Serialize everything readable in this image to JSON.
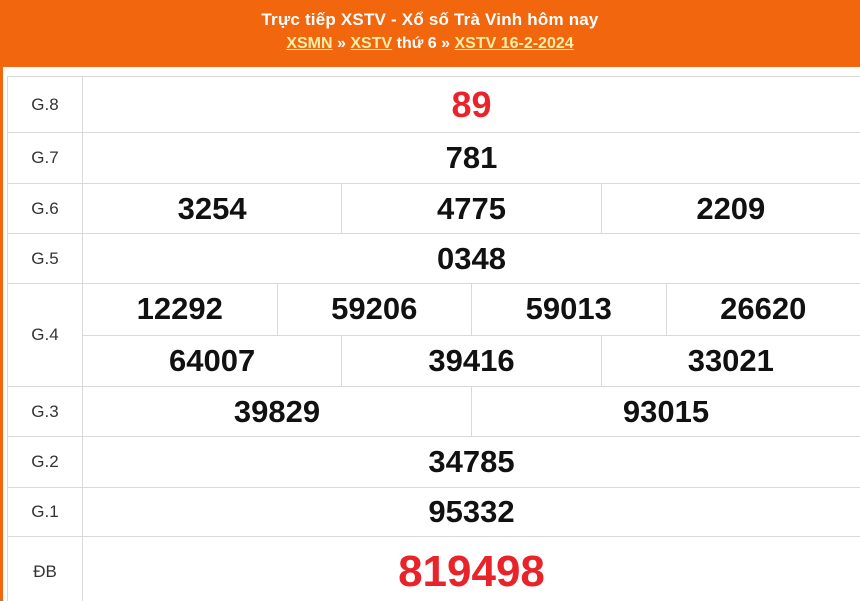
{
  "header": {
    "title": "Trực tiếp XSTV - Xổ số Trà Vinh hôm nay",
    "breadcrumb": {
      "link_region": "XSMN",
      "sep1": "»",
      "link_station": "XSTV",
      "day": "thứ 6",
      "sep2": "»",
      "link_date": "XSTV 16-2-2024"
    }
  },
  "table": {
    "rows": [
      {
        "label": "G.8",
        "highlight": "red",
        "lines": [
          [
            "89"
          ]
        ]
      },
      {
        "label": "G.7",
        "highlight": "none",
        "lines": [
          [
            "781"
          ]
        ]
      },
      {
        "label": "G.6",
        "highlight": "none",
        "lines": [
          [
            "3254",
            "4775",
            "2209"
          ]
        ]
      },
      {
        "label": "G.5",
        "highlight": "none",
        "lines": [
          [
            "0348"
          ]
        ]
      },
      {
        "label": "G.4",
        "highlight": "none",
        "lines": [
          [
            "12292",
            "59206",
            "59013",
            "26620"
          ],
          [
            "64007",
            "39416",
            "33021"
          ]
        ]
      },
      {
        "label": "G.3",
        "highlight": "none",
        "lines": [
          [
            "39829",
            "93015"
          ]
        ]
      },
      {
        "label": "G.2",
        "highlight": "none",
        "lines": [
          [
            "34785"
          ]
        ]
      },
      {
        "label": "G.1",
        "highlight": "none",
        "lines": [
          [
            "95332"
          ]
        ]
      },
      {
        "label": "ĐB",
        "highlight": "red",
        "lines": [
          [
            "819498"
          ]
        ]
      }
    ]
  },
  "colors": {
    "accent_orange": "#f2660d",
    "highlight_red": "#e8232a",
    "link_yellow": "#ffeea6",
    "border_gray": "#d9d9d9",
    "number_black": "#111111"
  }
}
